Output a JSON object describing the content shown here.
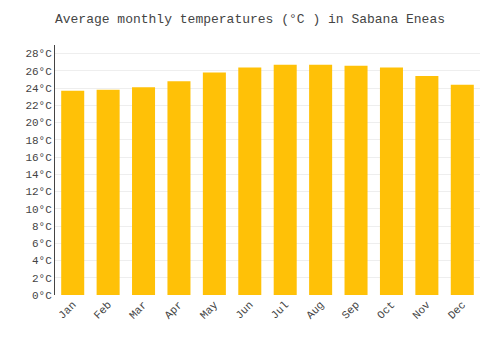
{
  "chart_data": {
    "type": "bar",
    "title": "Average monthly temperatures (°C ) in Sabana Eneas",
    "categories": [
      "Jan",
      "Feb",
      "Mar",
      "Apr",
      "May",
      "Jun",
      "Jul",
      "Aug",
      "Sep",
      "Oct",
      "Nov",
      "Dec"
    ],
    "values": [
      23.7,
      23.8,
      24.1,
      24.8,
      25.8,
      26.4,
      26.7,
      26.7,
      26.6,
      26.4,
      25.4,
      24.4
    ],
    "color": "#FFC107",
    "ylim": [
      0,
      29
    ],
    "yticks": [
      {
        "value": 0,
        "label": "0°C"
      },
      {
        "value": 2,
        "label": "2°C"
      },
      {
        "value": 4,
        "label": "4°C"
      },
      {
        "value": 6,
        "label": "6°C"
      },
      {
        "value": 8,
        "label": "8°C"
      },
      {
        "value": 10,
        "label": "10°C"
      },
      {
        "value": 12,
        "label": "12°C"
      },
      {
        "value": 14,
        "label": "14°C"
      },
      {
        "value": 16,
        "label": "16°C"
      },
      {
        "value": 18,
        "label": "18°C"
      },
      {
        "value": 20,
        "label": "20°C"
      },
      {
        "value": 22,
        "label": "22°C"
      },
      {
        "value": 24,
        "label": "24°C"
      },
      {
        "value": 26,
        "label": "26°C"
      },
      {
        "value": 28,
        "label": "28°C"
      }
    ],
    "grid": true
  }
}
